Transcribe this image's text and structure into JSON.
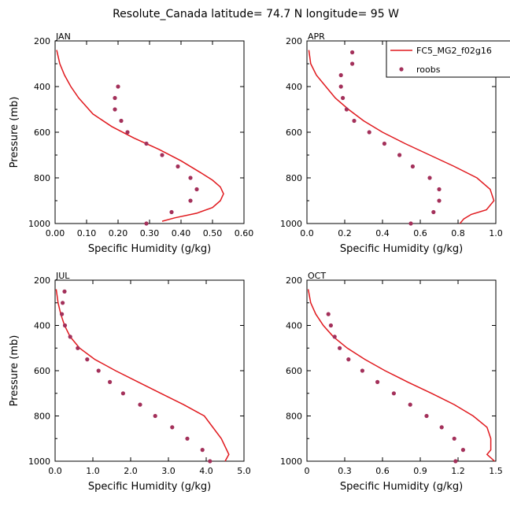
{
  "title": "Resolute_Canada  latitude= 74.7 N longitude= 95 W",
  "legend": {
    "model_label": "FC5_MG2_f02g16",
    "obs_label": "roobs"
  },
  "colors": {
    "model_line": "#e0191e",
    "obs_points": "#a3305a"
  },
  "chart_data": [
    {
      "type": "line",
      "panel": "JAN",
      "xlabel": "Specific Humidity (g/kg)",
      "ylabel": "Pressure (mb)",
      "xlim": [
        0.0,
        0.6
      ],
      "ylim": [
        1000,
        200
      ],
      "xticks": [
        "0.00",
        "0.10",
        "0.20",
        "0.30",
        "0.40",
        "0.50",
        "0.60"
      ],
      "yticks": [
        "200",
        "400",
        "600",
        "800",
        "1000"
      ],
      "series": [
        {
          "name": "FC5_MG2_f02g16",
          "kind": "line",
          "x": [
            0.005,
            0.015,
            0.03,
            0.05,
            0.075,
            0.12,
            0.18,
            0.25,
            0.33,
            0.4,
            0.46,
            0.5,
            0.525,
            0.535,
            0.525,
            0.5,
            0.45,
            0.38,
            0.34
          ],
          "y": [
            240,
            300,
            350,
            400,
            450,
            520,
            575,
            625,
            675,
            725,
            775,
            810,
            840,
            870,
            900,
            930,
            955,
            975,
            990
          ]
        },
        {
          "name": "roobs",
          "kind": "scatter",
          "x": [
            0.2,
            0.19,
            0.19,
            0.21,
            0.23,
            0.29,
            0.34,
            0.39,
            0.43,
            0.45,
            0.43,
            0.37,
            0.29
          ],
          "y": [
            400,
            450,
            500,
            550,
            600,
            650,
            700,
            750,
            800,
            850,
            900,
            950,
            1000
          ]
        }
      ]
    },
    {
      "type": "line",
      "panel": "APR",
      "xlabel": "Specific Humidity (g/kg)",
      "ylabel": "",
      "xlim": [
        0.0,
        1.0
      ],
      "ylim": [
        1000,
        200
      ],
      "xticks": [
        "0.0",
        "0.2",
        "0.4",
        "0.6",
        "0.8",
        "1.0"
      ],
      "yticks": [
        "200",
        "400",
        "600",
        "800",
        "1000"
      ],
      "series": [
        {
          "name": "FC5_MG2_f02g16",
          "kind": "line",
          "x": [
            0.01,
            0.02,
            0.05,
            0.1,
            0.15,
            0.22,
            0.3,
            0.4,
            0.52,
            0.65,
            0.78,
            0.9,
            0.97,
            0.99,
            0.95,
            0.87,
            0.83,
            0.81
          ],
          "y": [
            240,
            300,
            350,
            400,
            450,
            500,
            550,
            600,
            650,
            700,
            750,
            800,
            850,
            900,
            940,
            960,
            980,
            1000
          ]
        },
        {
          "name": "roobs",
          "kind": "scatter",
          "x": [
            0.24,
            0.24,
            0.18,
            0.18,
            0.19,
            0.21,
            0.25,
            0.33,
            0.41,
            0.49,
            0.56,
            0.65,
            0.7,
            0.7,
            0.67,
            0.55
          ],
          "y": [
            250,
            300,
            350,
            400,
            450,
            500,
            550,
            600,
            650,
            700,
            750,
            800,
            850,
            900,
            950,
            1000
          ]
        }
      ]
    },
    {
      "type": "line",
      "panel": "JUL",
      "xlabel": "Specific Humidity (g/kg)",
      "ylabel": "Pressure (mb)",
      "xlim": [
        0.0,
        5.0
      ],
      "ylim": [
        1000,
        200
      ],
      "xticks": [
        "0.0",
        "1.0",
        "2.0",
        "3.0",
        "4.0",
        "5.0"
      ],
      "yticks": [
        "200",
        "400",
        "600",
        "800",
        "1000"
      ],
      "series": [
        {
          "name": "FC5_MG2_f02g16",
          "kind": "line",
          "x": [
            0.03,
            0.08,
            0.15,
            0.25,
            0.4,
            0.65,
            1.05,
            1.6,
            2.2,
            2.8,
            3.4,
            3.95,
            4.4,
            4.6,
            4.5
          ],
          "y": [
            240,
            300,
            350,
            400,
            450,
            500,
            550,
            600,
            650,
            700,
            750,
            800,
            900,
            970,
            1000
          ]
        },
        {
          "name": "roobs",
          "kind": "scatter",
          "x": [
            0.25,
            0.2,
            0.18,
            0.26,
            0.4,
            0.6,
            0.85,
            1.15,
            1.45,
            1.8,
            2.25,
            2.65,
            3.1,
            3.5,
            3.9,
            4.1
          ],
          "y": [
            250,
            300,
            350,
            400,
            450,
            500,
            550,
            600,
            650,
            700,
            750,
            800,
            850,
            900,
            950,
            1000
          ]
        }
      ]
    },
    {
      "type": "line",
      "panel": "OCT",
      "xlabel": "Specific Humidity (g/kg)",
      "ylabel": "",
      "xlim": [
        0.0,
        1.5
      ],
      "ylim": [
        1000,
        200
      ],
      "xticks": [
        "0",
        "0.3",
        "0.6",
        "0.9",
        "1.2",
        "1.5"
      ],
      "yticks": [
        "200",
        "400",
        "600",
        "800",
        "1000"
      ],
      "series": [
        {
          "name": "FC5_MG2_f02g16",
          "kind": "line",
          "x": [
            0.01,
            0.03,
            0.07,
            0.13,
            0.21,
            0.32,
            0.46,
            0.62,
            0.8,
            0.99,
            1.17,
            1.32,
            1.43,
            1.46,
            1.46,
            1.43,
            1.49
          ],
          "y": [
            240,
            300,
            350,
            400,
            450,
            500,
            550,
            600,
            650,
            700,
            750,
            800,
            850,
            900,
            950,
            970,
            1000
          ]
        },
        {
          "name": "roobs",
          "kind": "scatter",
          "x": [
            0.17,
            0.19,
            0.22,
            0.26,
            0.33,
            0.44,
            0.56,
            0.69,
            0.82,
            0.95,
            1.07,
            1.17,
            1.24,
            1.18
          ],
          "y": [
            350,
            400,
            450,
            500,
            550,
            600,
            650,
            700,
            750,
            800,
            850,
            900,
            950,
            1000
          ]
        }
      ]
    }
  ]
}
